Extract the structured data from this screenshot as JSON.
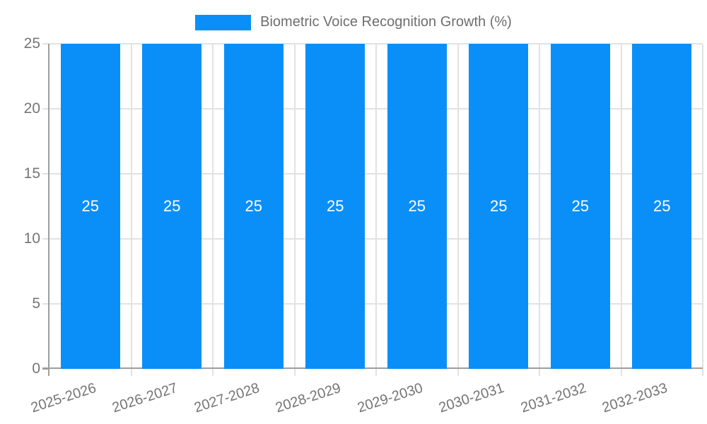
{
  "chart_data": {
    "type": "bar",
    "title": "Biometric Voice Recognition Growth (%)",
    "legend": {
      "label": "Biometric Voice Recognition Growth (%)",
      "position": "top"
    },
    "categories": [
      "2025-2026",
      "2026-2027",
      "2027-2028",
      "2028-2029",
      "2029-2030",
      "2030-2031",
      "2031-2032",
      "2032-2033"
    ],
    "series": [
      {
        "name": "Biometric Voice Recognition Growth (%)",
        "values": [
          25,
          25,
          25,
          25,
          25,
          25,
          25,
          25
        ]
      }
    ],
    "value_labels": [
      "25",
      "25",
      "25",
      "25",
      "25",
      "25",
      "25",
      "25"
    ],
    "xlabel": "",
    "ylabel": "",
    "ylim": [
      0,
      25
    ],
    "yticks": [
      0,
      5,
      10,
      15,
      20,
      25
    ],
    "grid": true,
    "x_label_rotation_deg": -18,
    "colors": {
      "bar": "#0a8ff9",
      "value_label": "#ffffff",
      "grid": "#e2e2e2",
      "axis": "#9e9e9e",
      "tick_label": "#757575",
      "legend_text": "#6e6e6e",
      "background": "#ffffff"
    }
  }
}
